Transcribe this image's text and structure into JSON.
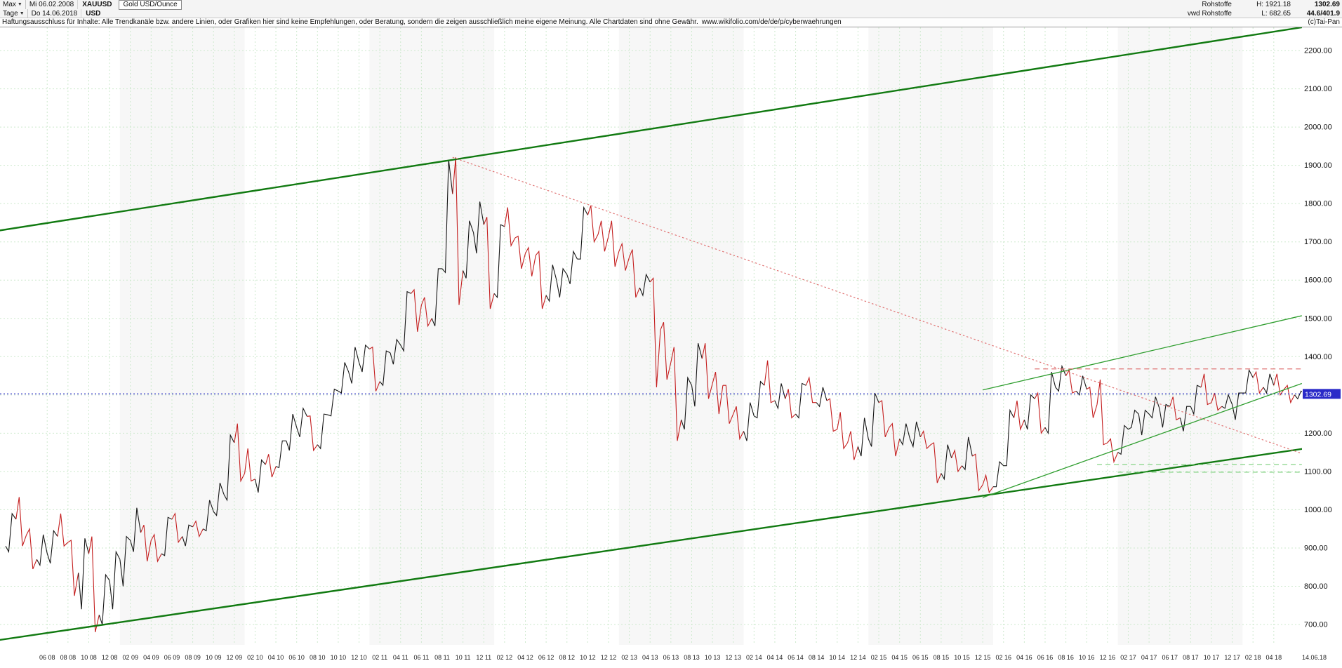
{
  "header": {
    "range_label": "Max",
    "caret": "▼",
    "date_from": "Mi 06.02.2008",
    "symbol": "XAUUSD",
    "instrument": "Gold USD/Ounce",
    "period_label": "Tage",
    "date_to": "Do 14.06.2018",
    "currency": "USD",
    "right": {
      "category": "Rohstoffe",
      "high": "H: 1921.18",
      "last": "1302.69",
      "source": "vwd Rohstoffe",
      "low": "L: 682.65",
      "extra": "44.6/401.9"
    },
    "copyright": "(c)Tai-Pan"
  },
  "disclaimer": {
    "text": "Haftungsausschluss für Inhalte: Alle Trendkanäle bzw. andere Linien, oder Grafiken hier sind keine Empfehlungen, oder Beratung, sondern die zeigen ausschließlich meine eigene Meinung. Alle Chartdaten sind ohne Gewähr.",
    "link": "www.wikifolio.com/de/de/p/cyberwaehrungen"
  },
  "chart_data": {
    "type": "candlestick",
    "title": "Gold USD/Ounce (XAUUSD), Tage, Mi 06.02.2008 - Do 14.06.2018",
    "x_unit": "month",
    "x_start": "2008-02",
    "x_end": "2018-06",
    "ylim": [
      640,
      2300
    ],
    "y_ticks": [
      700,
      800,
      900,
      1000,
      1100,
      1200,
      1300,
      1400,
      1500,
      1600,
      1700,
      1800,
      1900,
      2000,
      2100,
      2200
    ],
    "x_first_tick_month_index": 4,
    "x_tick_step_months": 2,
    "x_tick_labels": [
      "06 08",
      "08 08",
      "10 08",
      "12 08",
      "02 09",
      "04 09",
      "06 09",
      "08 09",
      "10 09",
      "12 09",
      "02 10",
      "04 10",
      "06 10",
      "08 10",
      "10 10",
      "12 10",
      "02 11",
      "04 11",
      "06 11",
      "08 11",
      "10 11",
      "12 11",
      "02 12",
      "04 12",
      "06 12",
      "08 12",
      "10 12",
      "12 12",
      "02 13",
      "04 13",
      "06 13",
      "08 13",
      "10 13",
      "12 13",
      "02 14",
      "04 14",
      "06 14",
      "08 14",
      "10 14",
      "12 14",
      "02 15",
      "04 15",
      "06 15",
      "08 15",
      "10 15",
      "12 15",
      "02 16",
      "04 16",
      "06 16",
      "08 16",
      "10 16",
      "12 16",
      "02 17",
      "04 17",
      "06 17",
      "08 17",
      "10 17",
      "12 17",
      "02 18",
      "04 18"
    ],
    "x_last_label": "14.06.18",
    "last_price": 1302.69,
    "high_all_time": 1921.18,
    "low_all_time": 682.65,
    "grid_color": "#cde9cd",
    "up_color": "#161616",
    "down_color": "#c41e1e",
    "last_price_line_color": "#2a2ac8",
    "series_monthly_hlc": [
      [
        990,
        890,
        975
      ],
      [
        1033,
        905,
        934
      ],
      [
        950,
        845,
        870
      ],
      [
        935,
        855,
        886
      ],
      [
        945,
        860,
        930
      ],
      [
        990,
        905,
        915
      ],
      [
        920,
        775,
        835
      ],
      [
        925,
        740,
        885
      ],
      [
        930,
        680,
        725
      ],
      [
        830,
        700,
        815
      ],
      [
        890,
        740,
        870
      ],
      [
        930,
        800,
        920
      ],
      [
        1005,
        890,
        940
      ],
      [
        960,
        865,
        920
      ],
      [
        935,
        865,
        885
      ],
      [
        980,
        880,
        975
      ],
      [
        990,
        915,
        930
      ],
      [
        960,
        905,
        955
      ],
      [
        970,
        930,
        950
      ],
      [
        1025,
        945,
        995
      ],
      [
        1070,
        985,
        1040
      ],
      [
        1195,
        1025,
        1175
      ],
      [
        1225,
        1075,
        1095
      ],
      [
        1160,
        1075,
        1080
      ],
      [
        1130,
        1045,
        1118
      ],
      [
        1145,
        1085,
        1113
      ],
      [
        1180,
        1110,
        1180
      ],
      [
        1250,
        1155,
        1215
      ],
      [
        1265,
        1190,
        1244
      ],
      [
        1245,
        1155,
        1170
      ],
      [
        1250,
        1160,
        1248
      ],
      [
        1315,
        1245,
        1310
      ],
      [
        1385,
        1305,
        1360
      ],
      [
        1425,
        1330,
        1385
      ],
      [
        1430,
        1360,
        1420
      ],
      [
        1425,
        1310,
        1335
      ],
      [
        1415,
        1325,
        1410
      ],
      [
        1445,
        1380,
        1430
      ],
      [
        1570,
        1415,
        1565
      ],
      [
        1575,
        1465,
        1535
      ],
      [
        1555,
        1480,
        1500
      ],
      [
        1630,
        1480,
        1630
      ],
      [
        1915,
        1620,
        1825
      ],
      [
        1921,
        1535,
        1625
      ],
      [
        1755,
        1605,
        1725
      ],
      [
        1805,
        1670,
        1745
      ],
      [
        1765,
        1525,
        1565
      ],
      [
        1745,
        1555,
        1740
      ],
      [
        1790,
        1690,
        1710
      ],
      [
        1715,
        1630,
        1670
      ],
      [
        1685,
        1610,
        1665
      ],
      [
        1675,
        1525,
        1560
      ],
      [
        1640,
        1545,
        1600
      ],
      [
        1630,
        1555,
        1615
      ],
      [
        1675,
        1590,
        1655
      ],
      [
        1790,
        1655,
        1770
      ],
      [
        1795,
        1700,
        1720
      ],
      [
        1755,
        1675,
        1715
      ],
      [
        1755,
        1635,
        1675
      ],
      [
        1695,
        1625,
        1660
      ],
      [
        1680,
        1555,
        1580
      ],
      [
        1615,
        1560,
        1595
      ],
      [
        1605,
        1320,
        1470
      ],
      [
        1490,
        1340,
        1385
      ],
      [
        1425,
        1180,
        1235
      ],
      [
        1345,
        1210,
        1325
      ],
      [
        1435,
        1270,
        1395
      ],
      [
        1435,
        1290,
        1330
      ],
      [
        1360,
        1250,
        1325
      ],
      [
        1325,
        1225,
        1250
      ],
      [
        1270,
        1185,
        1205
      ],
      [
        1280,
        1180,
        1245
      ],
      [
        1335,
        1240,
        1325
      ],
      [
        1390,
        1280,
        1285
      ],
      [
        1330,
        1265,
        1290
      ],
      [
        1315,
        1240,
        1250
      ],
      [
        1330,
        1240,
        1325
      ],
      [
        1345,
        1280,
        1280
      ],
      [
        1320,
        1270,
        1285
      ],
      [
        1290,
        1205,
        1210
      ],
      [
        1255,
        1160,
        1175
      ],
      [
        1205,
        1130,
        1165
      ],
      [
        1240,
        1140,
        1185
      ],
      [
        1305,
        1165,
        1280
      ],
      [
        1285,
        1190,
        1215
      ],
      [
        1225,
        1140,
        1185
      ],
      [
        1225,
        1170,
        1185
      ],
      [
        1230,
        1165,
        1190
      ],
      [
        1205,
        1160,
        1170
      ],
      [
        1175,
        1070,
        1095
      ],
      [
        1170,
        1080,
        1135
      ],
      [
        1155,
        1100,
        1115
      ],
      [
        1190,
        1105,
        1140
      ],
      [
        1145,
        1050,
        1065
      ],
      [
        1090,
        1045,
        1060
      ],
      [
        1125,
        1060,
        1115
      ],
      [
        1260,
        1115,
        1240
      ],
      [
        1285,
        1210,
        1235
      ],
      [
        1300,
        1210,
        1290
      ],
      [
        1305,
        1200,
        1215
      ],
      [
        1360,
        1200,
        1320
      ],
      [
        1375,
        1310,
        1350
      ],
      [
        1365,
        1305,
        1310
      ],
      [
        1350,
        1300,
        1315
      ],
      [
        1320,
        1240,
        1275
      ],
      [
        1340,
        1170,
        1175
      ],
      [
        1185,
        1125,
        1150
      ],
      [
        1220,
        1145,
        1210
      ],
      [
        1260,
        1215,
        1250
      ],
      [
        1260,
        1195,
        1250
      ],
      [
        1295,
        1240,
        1265
      ],
      [
        1275,
        1215,
        1270
      ],
      [
        1295,
        1235,
        1240
      ],
      [
        1270,
        1205,
        1270
      ],
      [
        1325,
        1250,
        1320
      ],
      [
        1355,
        1275,
        1280
      ],
      [
        1305,
        1260,
        1270
      ],
      [
        1300,
        1265,
        1275
      ],
      [
        1305,
        1235,
        1305
      ],
      [
        1365,
        1305,
        1345
      ],
      [
        1360,
        1305,
        1320
      ],
      [
        1355,
        1305,
        1325
      ],
      [
        1355,
        1300,
        1315
      ],
      [
        1325,
        1280,
        1300
      ],
      [
        1310,
        1290,
        1302.69
      ]
    ],
    "overlay_lines": [
      {
        "name": "upper-channel-line",
        "style": "solid",
        "color": "#117a11",
        "width": 2.4,
        "m1": -1,
        "p1": 1728,
        "m2": 125,
        "p2": 2262
      },
      {
        "name": "lower-channel-line",
        "style": "solid",
        "color": "#117a11",
        "width": 2.4,
        "m1": -1,
        "p1": 658,
        "m2": 125,
        "p2": 1160
      },
      {
        "name": "inner-uptrend-line",
        "style": "solid",
        "color": "#2f9e2f",
        "width": 1.3,
        "m1": 94,
        "p1": 1313,
        "m2": 124.7,
        "p2": 1507
      },
      {
        "name": "secondary-uptrend-line",
        "style": "solid",
        "color": "#2f9e2f",
        "width": 1.3,
        "m1": 94,
        "p1": 1032,
        "m2": 124.7,
        "p2": 1330
      },
      {
        "name": "downtrend-dotted-line",
        "style": "dotted",
        "color": "#e07474",
        "width": 1.2,
        "m1": 43,
        "p1": 1921,
        "m2": 124.7,
        "p2": 1147
      },
      {
        "name": "resistance-dashed-line",
        "style": "dashed",
        "color": "#e07474",
        "width": 1.2,
        "m1": 99,
        "p1": 1368,
        "m2": 124.7,
        "p2": 1368
      },
      {
        "name": "support-dashed-line-1",
        "style": "dashed",
        "color": "#79cf79",
        "width": 1.1,
        "m1": 105,
        "p1": 1118,
        "m2": 124.7,
        "p2": 1118
      },
      {
        "name": "support-dashed-line-2",
        "style": "dashed",
        "color": "#79cf79",
        "width": 1.1,
        "m1": 107,
        "p1": 1098,
        "m2": 124.7,
        "p2": 1098
      }
    ]
  }
}
